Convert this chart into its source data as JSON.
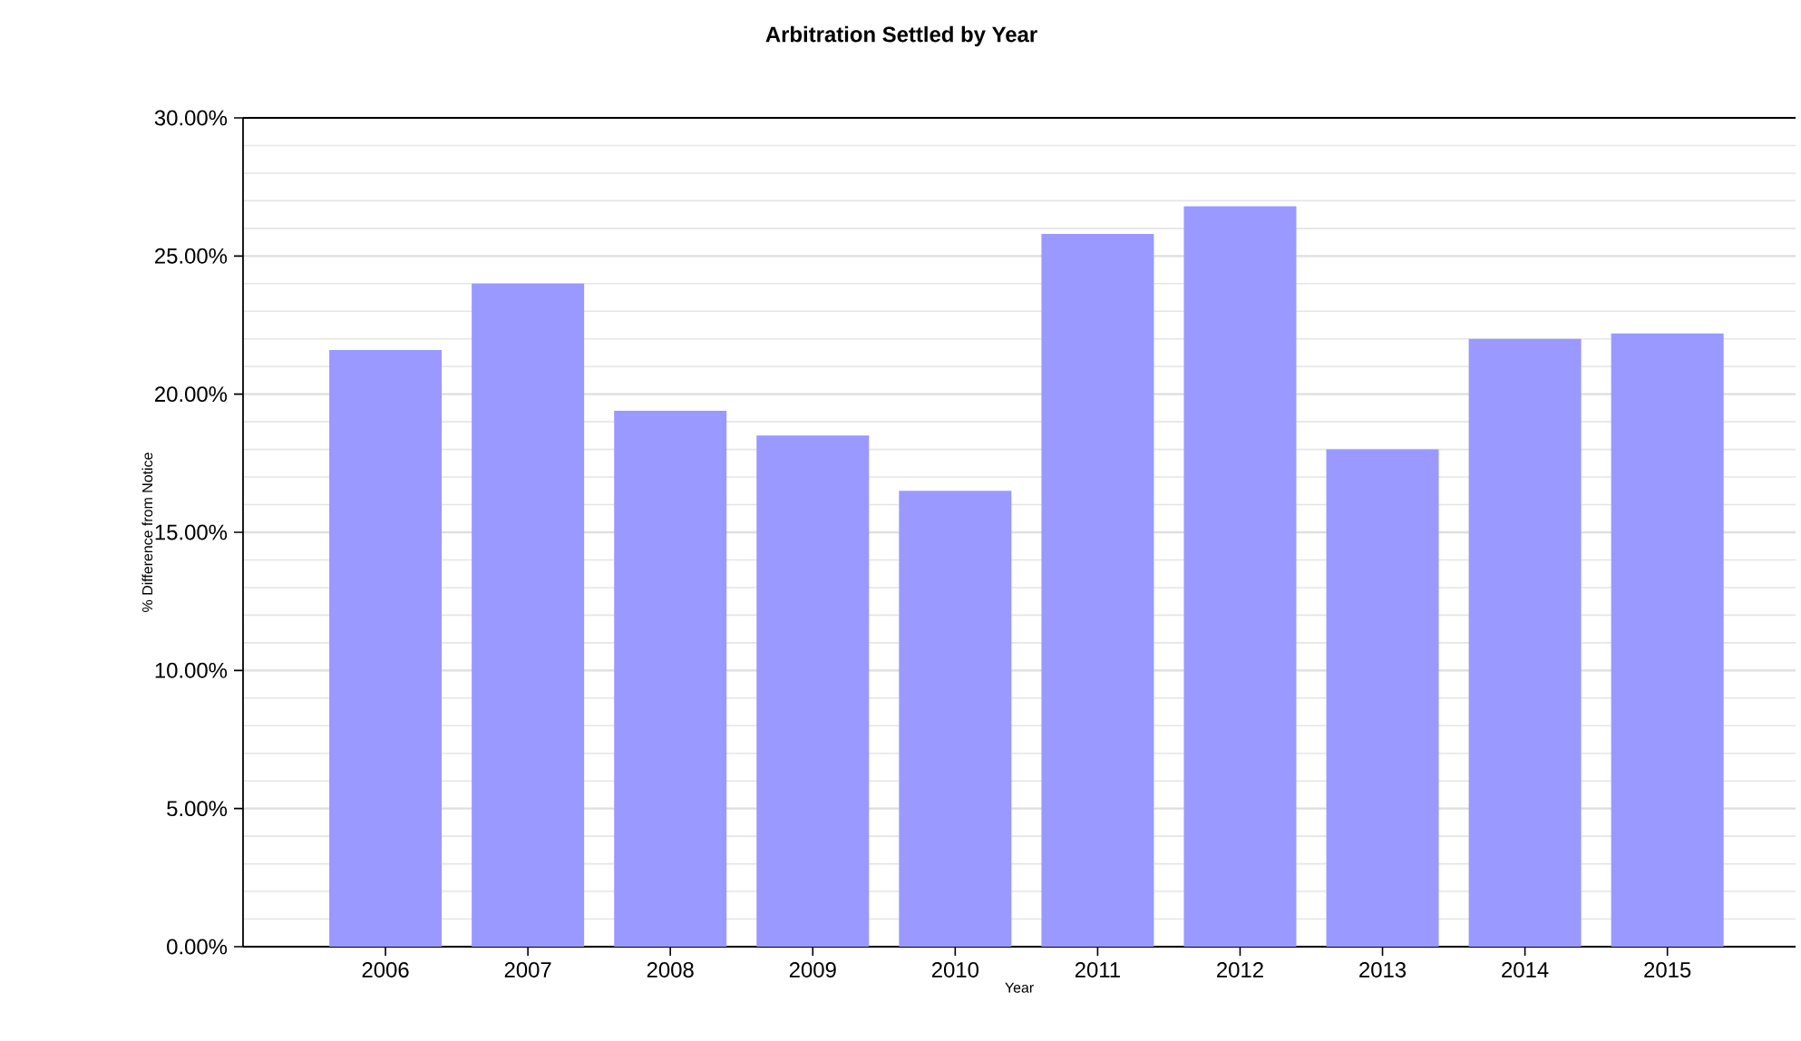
{
  "chart_data": {
    "type": "bar",
    "title": "Arbitration Settled by Year",
    "xlabel": "Year",
    "ylabel": "% Difference from Notice",
    "categories": [
      "2006",
      "2007",
      "2008",
      "2009",
      "2010",
      "2011",
      "2012",
      "2013",
      "2014",
      "2015"
    ],
    "values": [
      21.6,
      24.0,
      19.4,
      18.5,
      16.5,
      25.8,
      26.8,
      18.0,
      22.0,
      22.2
    ],
    "color": "#9999ff",
    "ylim": [
      0,
      30
    ],
    "yticks": [
      {
        "value": 0,
        "label": "0.00%"
      },
      {
        "value": 5,
        "label": "5.00%"
      },
      {
        "value": 10,
        "label": "10.00%"
      },
      {
        "value": 15,
        "label": "15.00%"
      },
      {
        "value": 20,
        "label": "20.00%"
      },
      {
        "value": 25,
        "label": "25.00%"
      },
      {
        "value": 30,
        "label": "30.00%"
      }
    ],
    "grid": "y"
  }
}
